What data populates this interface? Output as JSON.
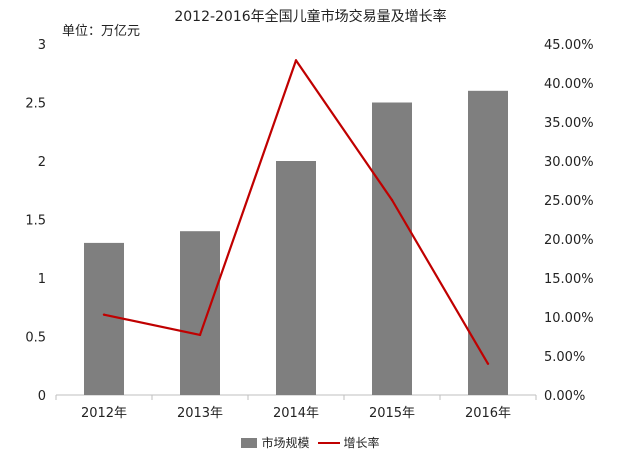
{
  "chart_data": {
    "type": "bar",
    "title": "2012-2016年全国儿童市场交易量及增长率",
    "unit_label": "单位：万亿元",
    "categories": [
      "2012年",
      "2013年",
      "2014年",
      "2015年",
      "2016年"
    ],
    "series": [
      {
        "name": "市场规模",
        "type": "bar",
        "axis": "left",
        "color": "#7f7f7f",
        "values": [
          1.3,
          1.4,
          2.0,
          2.5,
          2.6
        ]
      },
      {
        "name": "增长率",
        "type": "line",
        "axis": "right",
        "color": "#c00000",
        "values": [
          10.3,
          7.7,
          42.9,
          25.0,
          4.0
        ]
      }
    ],
    "y_left": {
      "min": 0,
      "max": 3,
      "ticks": [
        0,
        0.5,
        1,
        1.5,
        2,
        2.5,
        3
      ],
      "tick_labels": [
        "0",
        "0.5",
        "1",
        "1.5",
        "2",
        "2.5",
        "3"
      ]
    },
    "y_right": {
      "min": 0,
      "max": 45,
      "ticks": [
        0,
        5,
        10,
        15,
        20,
        25,
        30,
        35,
        40,
        45
      ],
      "tick_labels": [
        "0.00%",
        "5.00%",
        "10.00%",
        "15.00%",
        "20.00%",
        "25.00%",
        "30.00%",
        "35.00%",
        "40.00%",
        "45.00%"
      ]
    },
    "grid": false,
    "legend_position": "bottom"
  }
}
